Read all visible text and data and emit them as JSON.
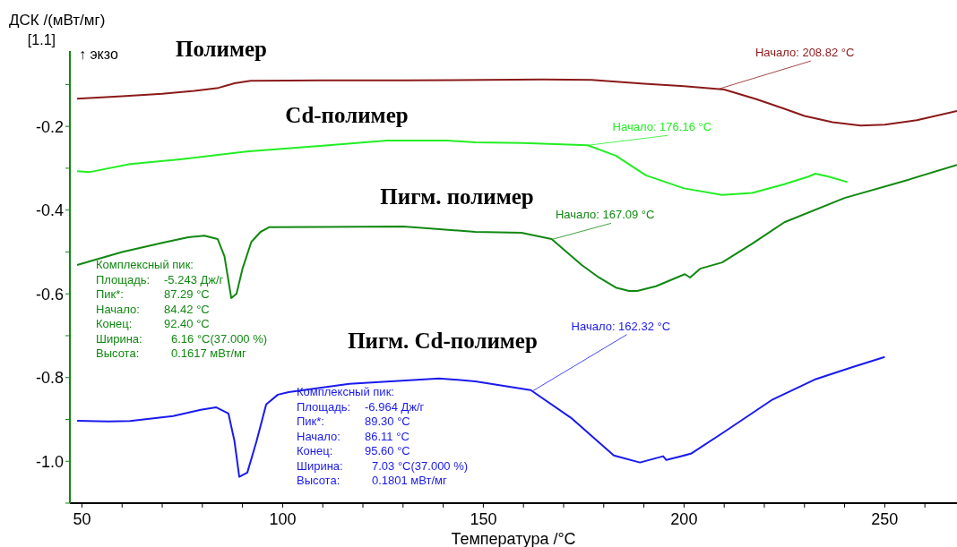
{
  "chart_data": {
    "type": "line",
    "xlabel": "Температура /°C",
    "ylabel": "ДСК /(мВт/мг)",
    "xlim": [
      47,
      268
    ],
    "ylim": [
      -1.1,
      -0.02
    ],
    "xticks": [
      50,
      {
        "value": 60,
        "label": null
      },
      {
        "value": 70,
        "label": null
      },
      {
        "value": 80,
        "label": null
      },
      {
        "value": 90,
        "label": null
      },
      100,
      {
        "value": 110,
        "label": null
      },
      {
        "value": 120,
        "label": null
      },
      {
        "value": 130,
        "label": null
      },
      {
        "value": 140,
        "label": null
      },
      150,
      {
        "value": 160,
        "label": null
      },
      {
        "value": 170,
        "label": null
      },
      {
        "value": 180,
        "label": null
      },
      {
        "value": 190,
        "label": null
      },
      200,
      {
        "value": 210,
        "label": null
      },
      {
        "value": 220,
        "label": null
      },
      {
        "value": 230,
        "label": null
      },
      {
        "value": 240,
        "label": null
      },
      250,
      {
        "value": 260,
        "label": null
      }
    ],
    "yticks": [
      {
        "value": -1.1,
        "label": null
      },
      {
        "value": -1,
        "label": "-1.0"
      },
      {
        "value": -0.9,
        "label": null
      },
      -0.8,
      {
        "value": -0.7,
        "label": null
      },
      -0.6,
      {
        "value": -0.5,
        "label": null
      },
      -0.4,
      {
        "value": -0.3,
        "label": null
      },
      -0.2,
      {
        "value": -0.1,
        "label": null
      }
    ],
    "marker": "none",
    "line_style": "solid",
    "series": [
      {
        "name": "Полимер",
        "color": "#8b1a1a",
        "x": [
          48.8,
          60,
          70,
          78,
          84,
          88,
          92,
          110,
          130,
          150,
          165,
          177,
          190,
          200,
          210,
          218,
          225,
          230,
          237,
          244,
          250,
          258,
          268
        ],
        "values": [
          -0.134,
          -0.128,
          -0.122,
          -0.115,
          -0.108,
          -0.097,
          -0.091,
          -0.09,
          -0.09,
          -0.089,
          -0.088,
          -0.089,
          -0.098,
          -0.104,
          -0.112,
          -0.135,
          -0.158,
          -0.175,
          -0.19,
          -0.198,
          -0.196,
          -0.185,
          -0.163
        ]
      },
      {
        "name": "Cd-полимер",
        "color": "#22ee22",
        "x": [
          48.8,
          52,
          62,
          75,
          91,
          110,
          126,
          141,
          148,
          160,
          176,
          183,
          190.5,
          200,
          209.5,
          217,
          225,
          231,
          232.7,
          236,
          240.7
        ],
        "values": [
          -0.307,
          -0.309,
          -0.29,
          -0.278,
          -0.26,
          -0.246,
          -0.234,
          -0.234,
          -0.238,
          -0.24,
          -0.245,
          -0.27,
          -0.317,
          -0.348,
          -0.364,
          -0.359,
          -0.338,
          -0.32,
          -0.313,
          -0.32,
          -0.333
        ]
      },
      {
        "name": "Пигм. полимер",
        "color": "#118811",
        "x": [
          48.8,
          60,
          70,
          76.5,
          80.5,
          83.8,
          85.5,
          87.2,
          88.5,
          90,
          92.2,
          94.5,
          96.6,
          110,
          130,
          148,
          159.5,
          167,
          174.5,
          178.8,
          183,
          186.3,
          188.3,
          193,
          200.2,
          201.5,
          204,
          209.5,
          217,
          225,
          240,
          255,
          268
        ],
        "values": [
          -0.531,
          -0.5,
          -0.478,
          -0.465,
          -0.461,
          -0.469,
          -0.51,
          -0.61,
          -0.6,
          -0.54,
          -0.476,
          -0.452,
          -0.441,
          -0.44,
          -0.439,
          -0.452,
          -0.454,
          -0.469,
          -0.531,
          -0.561,
          -0.585,
          -0.593,
          -0.593,
          -0.582,
          -0.553,
          -0.561,
          -0.54,
          -0.525,
          -0.48,
          -0.429,
          -0.371,
          -0.33,
          -0.292
        ]
      },
      {
        "name": "Пигм. Cd-полимер",
        "color": "#1a1aee",
        "x": [
          48.8,
          56.6,
          62,
          72.7,
          79.6,
          83.4,
          86.5,
          88,
          89.2,
          91.2,
          93.5,
          95.9,
          98.8,
          101.5,
          116.6,
          139,
          148,
          161.8,
          171.8,
          182.5,
          189,
          194.8,
          195.6,
          201.7,
          210,
          221.8,
          232.5,
          242,
          250
        ],
        "values": [
          -0.903,
          -0.905,
          -0.904,
          -0.892,
          -0.877,
          -0.871,
          -0.886,
          -0.952,
          -1.037,
          -1.027,
          -0.952,
          -0.864,
          -0.841,
          -0.835,
          -0.815,
          -0.802,
          -0.809,
          -0.83,
          -0.896,
          -0.986,
          -1.003,
          -0.988,
          -0.997,
          -0.982,
          -0.93,
          -0.854,
          -0.805,
          -0.775,
          -0.751
        ]
      }
    ],
    "annotations": [
      "[1.1]",
      "↑ экзо",
      {
        "text": "Начало: 208.82 °C",
        "x": 208.82,
        "y": -0.11
      },
      {
        "text": "Начало: 176.16 °C",
        "x": 176.16,
        "y": -0.245
      },
      {
        "text": "Начало: 167.09 °C",
        "x": 167.09,
        "y": -0.47
      },
      {
        "text": "Начало: 162.32 °C",
        "x": 162.32,
        "y": -0.832
      },
      "Комплексный пик:",
      "Площадь:  -5.243 Дж/г",
      "Пик*:  87.29 °C",
      "Начало:  84.42 °C",
      "Конец:  92.40 °C",
      "Ширина:  6.16 °C(37.000 %)",
      "Высота:  0.1617 мВт/мг",
      "Комплексный пик:",
      "Площадь:  -6.964 Дж/г",
      "Пик*:  89.30 °C",
      "Начало:  86.11 °C",
      "Конец:  95.60 °C",
      "Ширина:  7.03 °C(37.000 %)",
      "Высота:  0.1801 мВт/мг"
    ]
  }
}
